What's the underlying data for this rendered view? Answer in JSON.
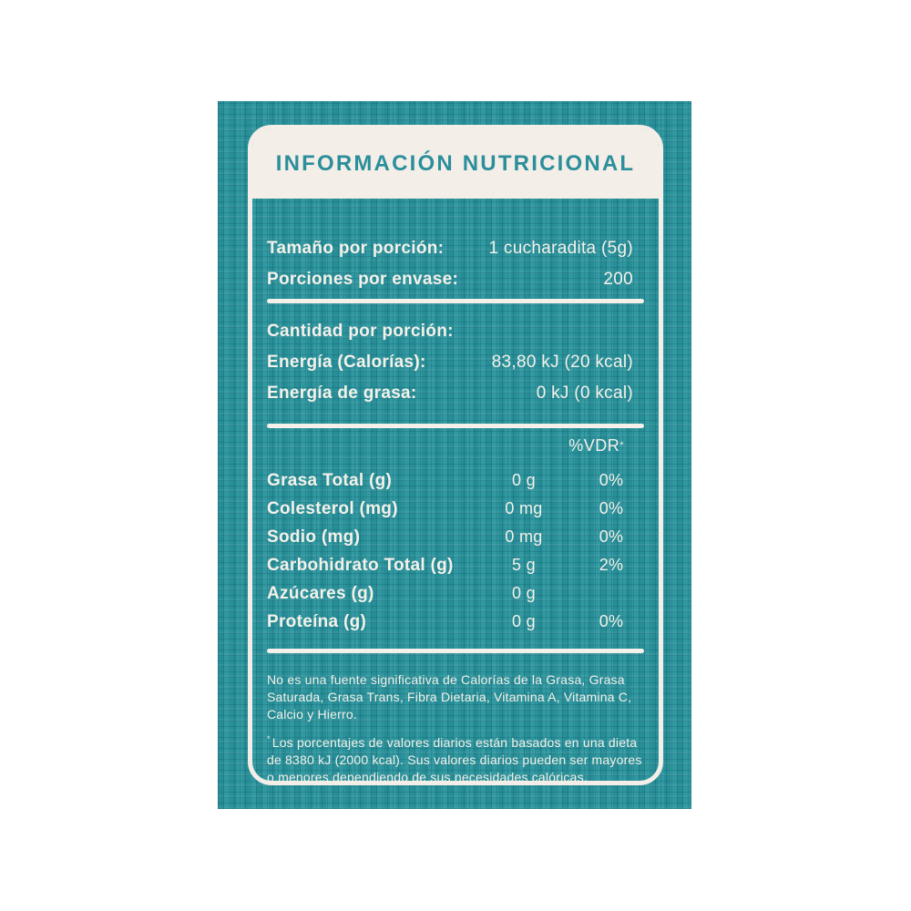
{
  "label": {
    "title": "INFORMACIÓN NUTRICIONAL",
    "serving": {
      "rows": [
        {
          "label": "Tamaño por porción:",
          "value": "1 cucharadita (5g)"
        },
        {
          "label": "Porciones por envase:",
          "value": "200"
        }
      ]
    },
    "per_portion": {
      "heading": "Cantidad por porción:",
      "rows": [
        {
          "label": "Energía (Calorías):",
          "value": "83,80 kJ (20 kcal)"
        },
        {
          "label": "Energía de grasa:",
          "value": "0 kJ (0 kcal)"
        }
      ]
    },
    "nutrients": {
      "vdr_header": "%VDR",
      "vdr_header_sup": "*",
      "rows": [
        {
          "label": "Grasa Total (g)",
          "amount": "0 g",
          "vdr": "0%"
        },
        {
          "label": "Colesterol (mg)",
          "amount": "0 mg",
          "vdr": "0%"
        },
        {
          "label": "Sodio (mg)",
          "amount": "0 mg",
          "vdr": "0%"
        },
        {
          "label": "Carbohidrato Total (g)",
          "amount": "5 g",
          "vdr": "2%"
        },
        {
          "label": "Azúcares (g)",
          "amount": "0 g",
          "vdr": ""
        },
        {
          "label": "Proteína (g)",
          "amount": "0 g",
          "vdr": "0%"
        }
      ]
    },
    "footnote_marker": "*",
    "footnotes": [
      "No es una fuente significativa de Calorías de la Grasa, Grasa Saturada, Grasa Trans, Fibra Dietaria, Vitamina A, Vitamina C, Calcio y Hierro.",
      "Los porcentajes de valores diarios están basados en una dieta de 8380 kJ (2000 kcal). Sus valores diarios pueden ser mayores o menores dependiendo de sus necesidades calóricas."
    ]
  },
  "colors": {
    "teal_base": "#2a959e",
    "teal_weave_dark": "#15707c",
    "cream": "#f3eee7",
    "title_teal": "#2b8e9b",
    "text": "#f4f1ea"
  }
}
